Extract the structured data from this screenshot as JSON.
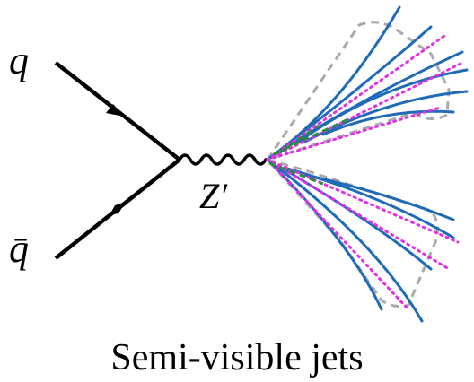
{
  "labels": {
    "quark": "q",
    "antiquark": "q̄",
    "mediator": "Z′"
  },
  "caption": "Semi-visible jets"
}
